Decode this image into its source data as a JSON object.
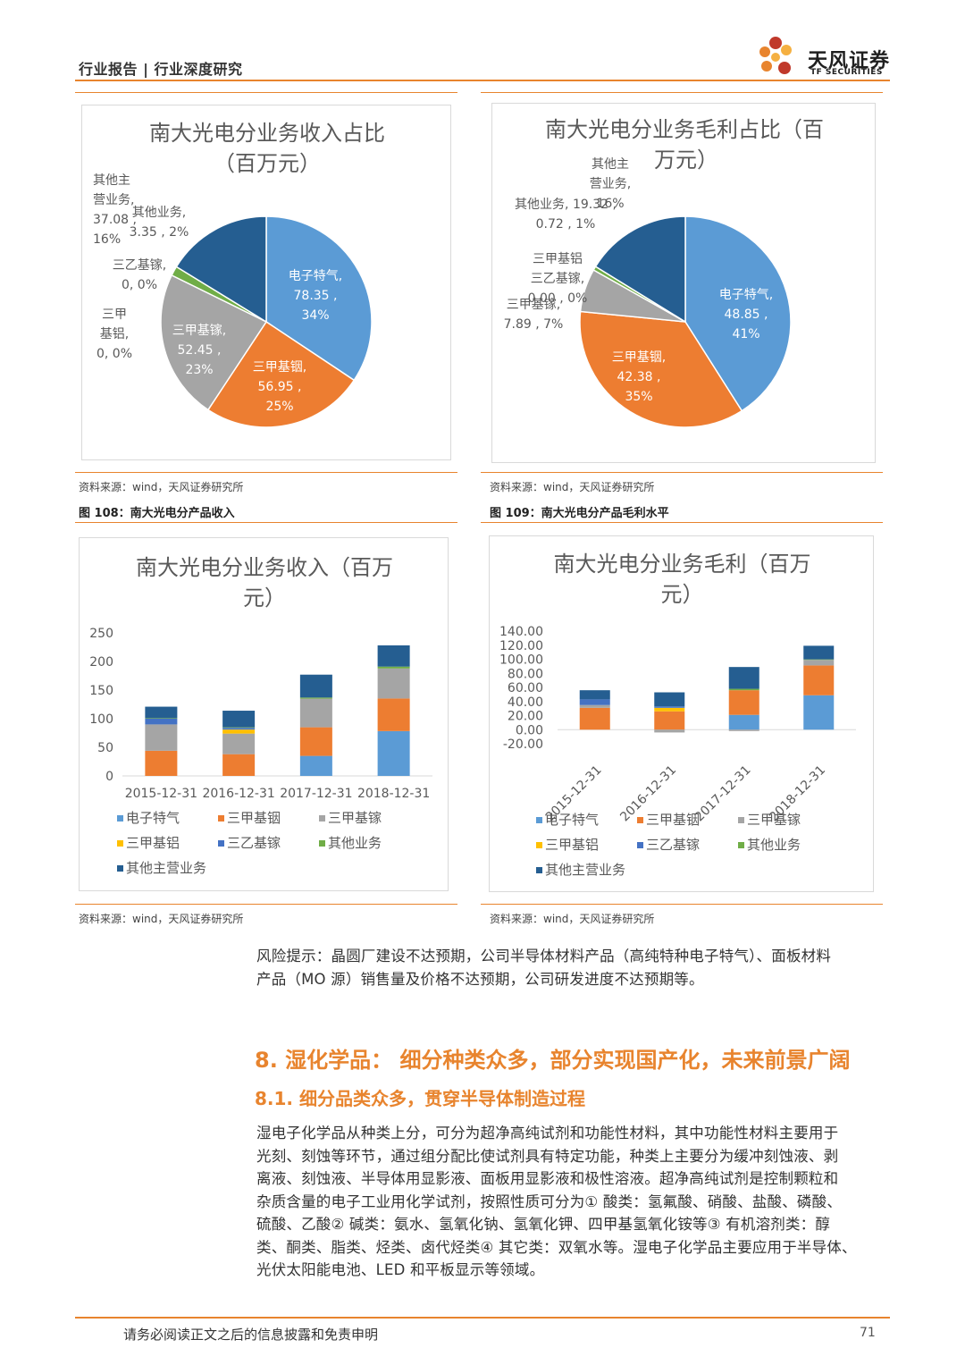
{
  "header": {
    "text": "行业报告 | 行业深度研究"
  },
  "logo": {
    "name_cn": "天风证券",
    "name_en": "TF SECURITIES",
    "colors": [
      "#e8842e",
      "#c0392b",
      "#f5b041"
    ]
  },
  "colors": {
    "accent": "#e8842e",
    "series": [
      "#5b9bd5",
      "#ed7d31",
      "#a5a5a5",
      "#ffc000",
      "#4472c4",
      "#70ad47",
      "#255e91"
    ]
  },
  "figures": {
    "fig108": {
      "source": "资料来源：wind，天风证券研究所",
      "caption": "图 108：南大光电分产品收入"
    },
    "fig109": {
      "source": "资料来源：wind，天风证券研究所",
      "caption": "图 109：南大光电分产品毛利水平"
    },
    "fig110": {
      "source": "资料来源：wind，天风证券研究所"
    },
    "fig111": {
      "source": "资料来源：wind，天风证券研究所"
    }
  },
  "chart_data": [
    {
      "type": "pie",
      "title_line1": "南大光电分业务收入占比",
      "title_line2": "（百万元）",
      "slices": [
        {
          "name": "电子特气",
          "value": 78.35,
          "percent": "34%",
          "label": [
            "电子特气,",
            "78.35 ,",
            "34%"
          ]
        },
        {
          "name": "三甲基铟",
          "value": 56.95,
          "percent": "25%",
          "label": [
            "三甲基铟,",
            "56.95 ,",
            "25%"
          ]
        },
        {
          "name": "三甲基镓",
          "value": 52.45,
          "percent": "23%",
          "label": [
            "三甲基镓,",
            "52.45 ,",
            "23%"
          ]
        },
        {
          "name": "三甲基铝",
          "value": 0,
          "percent": "0%",
          "label": [
            "三甲",
            "基铝,",
            "0, 0%"
          ]
        },
        {
          "name": "三乙基镓",
          "value": 0,
          "percent": "0%",
          "label": [
            "三乙基镓,",
            "0, 0%"
          ]
        },
        {
          "name": "其他业务",
          "value": 3.35,
          "percent": "2%",
          "label": [
            "其他业务,",
            "3.35 , 2%"
          ]
        },
        {
          "name": "其他主营业务",
          "value": 37.08,
          "percent": "16%",
          "label": [
            "其他主",
            "营业务,",
            "37.08 ,",
            "16%"
          ]
        }
      ]
    },
    {
      "type": "pie",
      "title_line1": "南大光电分业务毛利占比（百",
      "title_line2": "万元）",
      "slices": [
        {
          "name": "电子特气",
          "value": 48.85,
          "percent": "41%",
          "label": [
            "电子特气,",
            "48.85 ,",
            "41%"
          ]
        },
        {
          "name": "三甲基铟",
          "value": 42.38,
          "percent": "35%",
          "label": [
            "三甲基铟,",
            "42.38 ,",
            "35%"
          ]
        },
        {
          "name": "三甲基镓",
          "value": 7.89,
          "percent": "7%",
          "label": [
            "三甲基镓,",
            "7.89 , 7%"
          ]
        },
        {
          "name": "三甲基铝",
          "value": 0,
          "percent": "0%",
          "label": [
            "三甲基铝"
          ]
        },
        {
          "name": "三乙基镓",
          "value": 0.0,
          "percent": "0%",
          "label": [
            "三乙基镓,",
            "0.00 , 0%"
          ]
        },
        {
          "name": "其他业务",
          "value": 0.72,
          "percent": "1%",
          "label": [
            "其他业务, 19.32 ,",
            "0.72 , 1%"
          ]
        },
        {
          "name": "其他主营业务",
          "value": 19.32,
          "percent": "16%",
          "label": [
            "其他主",
            "营业务,",
            "16%"
          ]
        }
      ]
    },
    {
      "type": "bar",
      "stacked": true,
      "title_line1": "南大光电分业务收入（百万",
      "title_line2": "元）",
      "categories": [
        "2015-12-31",
        "2016-12-31",
        "2017-12-31",
        "2018-12-31"
      ],
      "ylim": [
        0,
        250
      ],
      "yticks": [
        "0",
        "50",
        "100",
        "150",
        "200",
        "250"
      ],
      "tick_values": [
        0,
        50,
        100,
        150,
        200,
        250
      ],
      "series": [
        {
          "name": "电子特气",
          "values": [
            0,
            0,
            35,
            78.35
          ]
        },
        {
          "name": "三甲基铟",
          "values": [
            44,
            38,
            50,
            56.95
          ]
        },
        {
          "name": "三甲基镓",
          "values": [
            46,
            36,
            50,
            52.45
          ]
        },
        {
          "name": "三甲基铝",
          "values": [
            0,
            7,
            0,
            0
          ]
        },
        {
          "name": "三乙基镓",
          "values": [
            10,
            3,
            0,
            0
          ]
        },
        {
          "name": "其他业务",
          "values": [
            1,
            1,
            2,
            3.35
          ]
        },
        {
          "name": "其他主营业务",
          "values": [
            20,
            29,
            40,
            37.08
          ]
        }
      ],
      "legend": "bottom"
    },
    {
      "type": "bar",
      "stacked": true,
      "title_line1": "南大光电分业务毛利（百万",
      "title_line2": "元）",
      "categories": [
        "2015-12-31",
        "2016-12-31",
        "2017-12-31",
        "2018-12-31"
      ],
      "ylim": [
        -20,
        140
      ],
      "yticks": [
        "-20.00",
        "0.00",
        "20.00",
        "40.00",
        "60.00",
        "80.00",
        "100.00",
        "120.00",
        "140.00"
      ],
      "tick_values": [
        -20,
        0,
        20,
        40,
        60,
        80,
        100,
        120,
        140
      ],
      "series": [
        {
          "name": "电子特气",
          "values": [
            0,
            0,
            21,
            48.85
          ]
        },
        {
          "name": "三甲基铟",
          "values": [
            31,
            26,
            35,
            42.38
          ]
        },
        {
          "name": "三甲基镓",
          "values": [
            4,
            -4,
            -2,
            7.89
          ]
        },
        {
          "name": "三甲基铝",
          "values": [
            0,
            5,
            0,
            0
          ]
        },
        {
          "name": "三乙基镓",
          "values": [
            8,
            2,
            0,
            0
          ]
        },
        {
          "name": "其他业务",
          "values": [
            0,
            0,
            2,
            0.72
          ]
        },
        {
          "name": "其他主营业务",
          "values": [
            13,
            20,
            31,
            19.32
          ]
        }
      ],
      "legend": "bottom"
    }
  ],
  "risk": {
    "line1": "风险提示：晶圆厂建设不达预期，公司半导体材料产品（高纯特种电子特气）、面板材料",
    "line2": "产品（MO 源）销售量及价格不达预期，公司研发进度不达预期等。"
  },
  "section": {
    "h1": "8. 湿化学品： 细分种类众多，部分实现国产化，未来前景广阔",
    "h2": "8.1. 细分品类众多，贯穿半导体制造过程",
    "paragraph": [
      "湿电子化学品从种类上分，可分为超净高纯试剂和功能性材料，其中功能性材料主要用于",
      "光刻、刻蚀等环节，通过组分配比使试剂具有特定功能，种类上主要分为缓冲刻蚀液、剥",
      "离液、刻蚀液、半导体用显影液、面板用显影液和极性溶液。超净高纯试剂是控制颗粒和",
      "杂质含量的电子工业用化学试剂，按照性质可分为① 酸类：氢氟酸、硝酸、盐酸、磷酸、",
      "硫酸、乙酸② 碱类：氨水、氢氧化钠、氢氧化钾、四甲基氢氧化铵等③ 有机溶剂类：醇",
      "类、酮类、脂类、烃类、卤代烃类④ 其它类：双氧水等。湿电子化学品主要应用于半导体、",
      "光伏太阳能电池、LED 和平板显示等领域。"
    ]
  },
  "footer": {
    "disclaimer": "请务必阅读正文之后的信息披露和免责申明",
    "page": "71"
  }
}
